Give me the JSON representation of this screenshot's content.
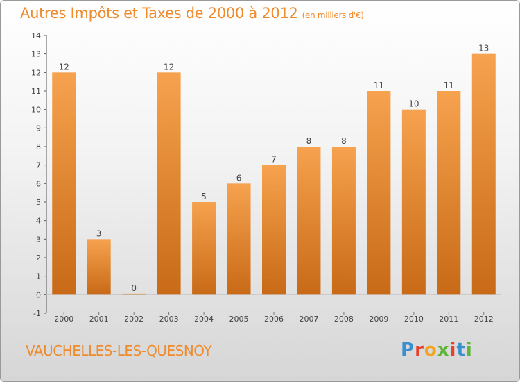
{
  "header": {
    "title": "Autres Impôts et Taxes de 2000 à 2012",
    "subtitle": "(en milliers d'€)"
  },
  "footer": {
    "commune": "VAUCHELLES-LES-QUESNOY",
    "brand_letters": [
      "P",
      "r",
      "o",
      "x",
      "i",
      "t",
      "i"
    ]
  },
  "colors": {
    "title": "#ef8b2c",
    "bar_top": "#f6a24e",
    "bar_bottom": "#c86a17",
    "brand": [
      "#3a8fd0",
      "#e5412b",
      "#f4a21f",
      "#5fb53a",
      "#e5412b",
      "#3a8fd0",
      "#5fb53a"
    ]
  },
  "chart_data": {
    "type": "bar",
    "title": "Autres Impôts et Taxes de 2000 à 2012",
    "subtitle": "(en milliers d'€)",
    "categories": [
      "2000",
      "2001",
      "2002",
      "2003",
      "2004",
      "2005",
      "2006",
      "2007",
      "2008",
      "2009",
      "2010",
      "2011",
      "2012"
    ],
    "values": [
      12,
      3,
      0,
      12,
      5,
      6,
      7,
      8,
      8,
      11,
      10,
      11,
      13
    ],
    "ylim": [
      -1,
      14
    ],
    "yticks": [
      "-1",
      "0",
      "1",
      "2",
      "3",
      "4",
      "5",
      "6",
      "7",
      "8",
      "9",
      "10",
      "11",
      "12",
      "13",
      "14"
    ],
    "xlabel": "",
    "ylabel": "",
    "grid": false,
    "legend": "none"
  }
}
